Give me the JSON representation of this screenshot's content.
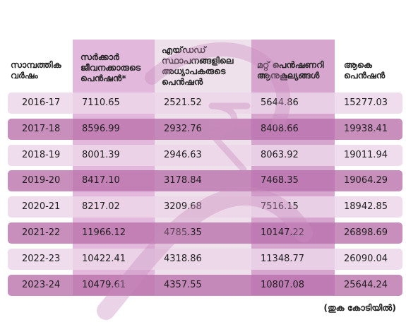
{
  "colors": {
    "band_odd": "#ecd6e9",
    "band_even": "#b870aa",
    "col_sarkar": "#e2b9dc",
    "col_aided": "#efe1ec",
    "col_mattu": "#d7a6cf",
    "watermark": "#c98bbd"
  },
  "headers": {
    "year": [
      "സാമ്പത്തിക",
      "വർഷം"
    ],
    "sarkar": [
      "സർക്കാർ",
      "ജീവനക്കാരുടെ",
      "പെൻഷൻ*"
    ],
    "aided": [
      "എയ്‌ഡഡ്",
      "സ്ഥാപനങ്ങളിലെ",
      "അധ്യാപകരുടെ",
      "പെൻഷൻ"
    ],
    "mattu": [
      "മറ്റ് പെൻഷണറി",
      "ആനുകൂല്യങ്ങൾ"
    ],
    "total": [
      "ആകെ",
      "പെൻഷൻ"
    ]
  },
  "note": "(തുക കോടിയിൽ)",
  "chart_data": {
    "type": "table",
    "columns": [
      "സാമ്പത്തിക വർഷം",
      "സർക്കാർ ജീവനക്കാരുടെ പെൻഷൻ*",
      "എയ്‌ഡഡ് സ്ഥാപനങ്ങളിലെ അധ്യാപകരുടെ പെൻഷൻ",
      "മറ്റ് പെൻഷണറി ആനുകൂല്യങ്ങൾ",
      "ആകെ പെൻഷൻ"
    ],
    "rows": [
      [
        "2016-17",
        "7110.65",
        "2521.52",
        "5644.86",
        "15277.03"
      ],
      [
        "2017-18",
        "8596.99",
        "2932.76",
        "8408.66",
        "19938.41"
      ],
      [
        "2018-19",
        "8001.39",
        "2946.63",
        "8063.92",
        "19011.94"
      ],
      [
        "2019-20",
        "8417.10",
        "3178.84",
        "7468.35",
        "19064.29"
      ],
      [
        "2020-21",
        "8217.02",
        "3209.68",
        "7516.15",
        "18942.85"
      ],
      [
        "2021-22",
        "11966.12",
        "4785.35",
        "10147.22",
        "26898.69"
      ],
      [
        "2022-23",
        "10422.41",
        "4318.86",
        "11348.77",
        "26090.04"
      ],
      [
        "2023-24",
        "10479.61",
        "4357.55",
        "10807.08",
        "25644.24"
      ]
    ]
  }
}
